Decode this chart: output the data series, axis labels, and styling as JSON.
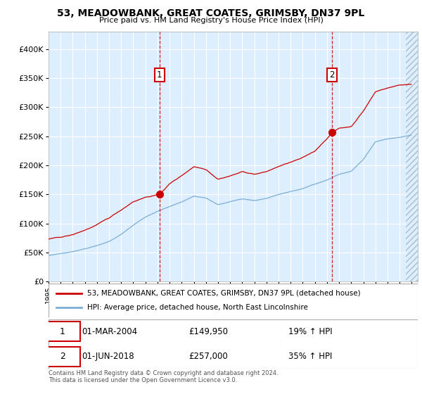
{
  "title1": "53, MEADOWBANK, GREAT COATES, GRIMSBY, DN37 9PL",
  "title2": "Price paid vs. HM Land Registry's House Price Index (HPI)",
  "legend_line1": "53, MEADOWBANK, GREAT COATES, GRIMSBY, DN37 9PL (detached house)",
  "legend_line2": "HPI: Average price, detached house, North East Lincolnshire",
  "sale1_date": "01-MAR-2004",
  "sale1_price": "£149,950",
  "sale1_hpi": "19% ↑ HPI",
  "sale2_date": "01-JUN-2018",
  "sale2_price": "£257,000",
  "sale2_hpi": "35% ↑ HPI",
  "footer": "Contains HM Land Registry data © Crown copyright and database right 2024.\nThis data is licensed under the Open Government Licence v3.0.",
  "sale_color": "#cc0000",
  "hpi_color": "#7aaed6",
  "marker1_x": 2004.17,
  "marker1_y": 149950,
  "marker2_x": 2018.42,
  "marker2_y": 257000,
  "ylim": [
    0,
    430000
  ],
  "xlim_start": 1995.0,
  "xlim_end": 2025.5,
  "plot_bg": "#ddeeff"
}
